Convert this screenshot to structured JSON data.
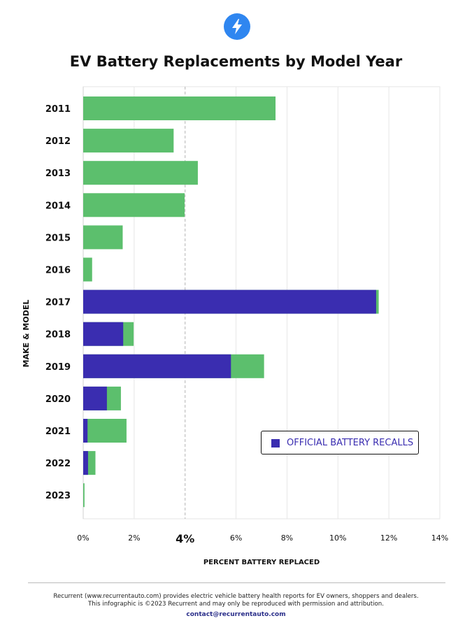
{
  "title": "EV Battery Replacements by Model Year",
  "icon": "lightning-bolt-icon",
  "colors": {
    "total": "#5cbf6d",
    "recall": "#3a2db0",
    "logo": "#2f86f0"
  },
  "legend": {
    "recall_label": "OFFICIAL BATTERY RECALLS"
  },
  "chart_data": {
    "type": "bar",
    "orientation": "horizontal",
    "title": "EV Battery Replacements by Model Year",
    "xlabel": "PERCENT BATTERY REPLACED",
    "ylabel": "MAKE & MODEL",
    "xlim": [
      0,
      14
    ],
    "x_ticks": [
      "0%",
      "2%",
      "4%",
      "6%",
      "8%",
      "10%",
      "12%",
      "14%"
    ],
    "reference_line": 4,
    "categories": [
      "2011",
      "2012",
      "2013",
      "2014",
      "2015",
      "2016",
      "2017",
      "2018",
      "2019",
      "2020",
      "2021",
      "2022",
      "2023"
    ],
    "series": [
      {
        "name": "",
        "values": [
          7.55,
          3.55,
          4.5,
          3.98,
          1.55,
          0.35,
          11.6,
          1.98,
          7.1,
          1.48,
          1.7,
          0.48,
          0.05
        ]
      },
      {
        "name": "OFFICIAL BATTERY RECALLS",
        "values": [
          0,
          0,
          0,
          0,
          0,
          0,
          11.5,
          1.57,
          5.8,
          0.93,
          0.17,
          0.19,
          0
        ]
      }
    ],
    "grid": true,
    "legend_position": "bottom-right"
  },
  "footer": {
    "line1": "Recurrent (www.recurrentauto.com) provides electric vehicle battery health reports for EV owners, shoppers and dealers.",
    "line2": "This infographic is ©2023 Recurrent and may only be reproduced with permission and attribution.",
    "contact": "contact@recurrentauto.com"
  }
}
